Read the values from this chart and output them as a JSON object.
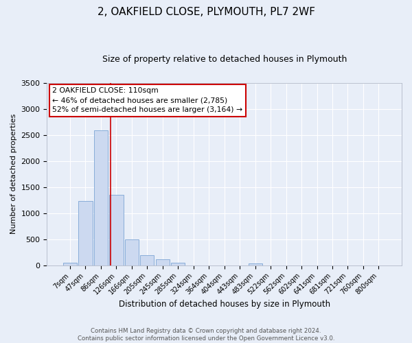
{
  "title": "2, OAKFIELD CLOSE, PLYMOUTH, PL7 2WF",
  "subtitle": "Size of property relative to detached houses in Plymouth",
  "xlabel": "Distribution of detached houses by size in Plymouth",
  "ylabel": "Number of detached properties",
  "bin_labels": [
    "7sqm",
    "47sqm",
    "86sqm",
    "126sqm",
    "166sqm",
    "205sqm",
    "245sqm",
    "285sqm",
    "324sqm",
    "364sqm",
    "404sqm",
    "443sqm",
    "483sqm",
    "522sqm",
    "562sqm",
    "602sqm",
    "641sqm",
    "681sqm",
    "721sqm",
    "760sqm",
    "800sqm"
  ],
  "bar_values": [
    50,
    1230,
    2590,
    1350,
    500,
    200,
    115,
    50,
    0,
    0,
    0,
    0,
    40,
    0,
    0,
    0,
    0,
    0,
    0,
    0,
    0
  ],
  "bar_color": "#ccd9f0",
  "bar_edge_color": "#7ba4d4",
  "vline_color": "#cc0000",
  "vline_x_index": 2.62,
  "annotation_title": "2 OAKFIELD CLOSE: 110sqm",
  "annotation_line1": "← 46% of detached houses are smaller (2,785)",
  "annotation_line2": "52% of semi-detached houses are larger (3,164) →",
  "annotation_box_color": "#ffffff",
  "annotation_box_edge_color": "#cc0000",
  "ylim": [
    0,
    3500
  ],
  "yticks": [
    0,
    500,
    1000,
    1500,
    2000,
    2500,
    3000,
    3500
  ],
  "footer_line1": "Contains HM Land Registry data © Crown copyright and database right 2024.",
  "footer_line2": "Contains public sector information licensed under the Open Government Licence v3.0.",
  "bg_color": "#e8eef8",
  "grid_color": "#ffffff",
  "title_fontsize": 11,
  "subtitle_fontsize": 9
}
